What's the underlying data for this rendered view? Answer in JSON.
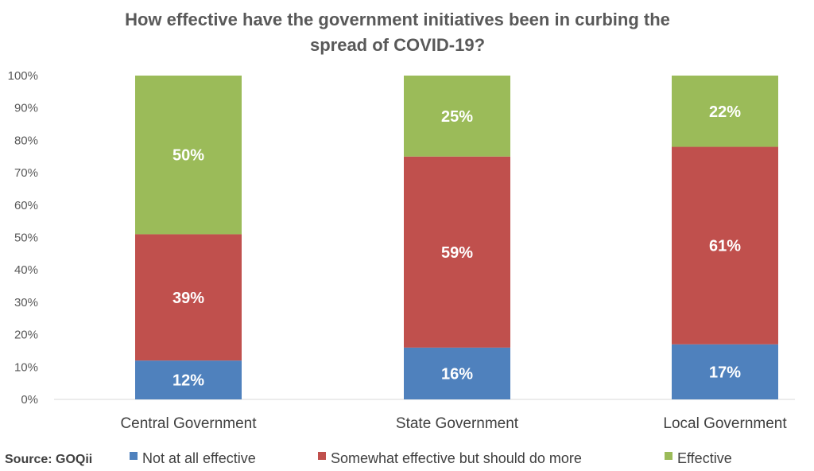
{
  "chart_data": {
    "type": "bar",
    "stacked": true,
    "title_line1": "How effective have the government initiatives been in curbing the",
    "title_line2": "spread of COVID-19?",
    "xlabel": "",
    "ylabel": "",
    "ylim": [
      0,
      100
    ],
    "y_ticks": [
      "0%",
      "10%",
      "20%",
      "30%",
      "40%",
      "50%",
      "60%",
      "70%",
      "80%",
      "90%",
      "100%"
    ],
    "categories": [
      "Central Government",
      "State Government",
      "Local Government"
    ],
    "series": [
      {
        "name": "Not at all effective",
        "color": "#4f81bd",
        "values": [
          12,
          16,
          17
        ],
        "labels": [
          "12%",
          "16%",
          "17%"
        ]
      },
      {
        "name": "Somewhat effective but should do more",
        "color": "#c0504d",
        "values": [
          39,
          59,
          61
        ],
        "labels": [
          "39%",
          "59%",
          "61%"
        ]
      },
      {
        "name": "Effective",
        "color": "#9bbb59",
        "values": [
          50,
          25,
          22
        ],
        "labels": [
          "50%",
          "25%",
          "22%"
        ]
      }
    ],
    "grid": false,
    "legend_position": "bottom",
    "source": "Source: GOQii"
  }
}
